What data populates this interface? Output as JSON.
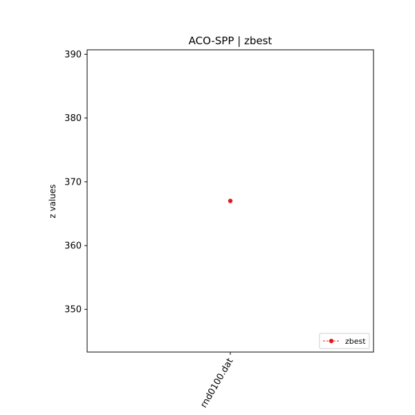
{
  "chart_data": {
    "type": "line",
    "title": "ACO-SPP | zbest",
    "xlabel": "",
    "ylabel": "z values",
    "categories": [
      "rnd0100.dat"
    ],
    "series": [
      {
        "name": "zbest",
        "values": [
          367
        ],
        "color": "#e31a1c",
        "marker": "circle",
        "linestyle": "dashed"
      }
    ],
    "ylim": [
      343.3,
      390.7
    ],
    "yticks": [
      350,
      360,
      370,
      380,
      390
    ],
    "grid": false,
    "legend": {
      "position": "lower-right"
    }
  }
}
